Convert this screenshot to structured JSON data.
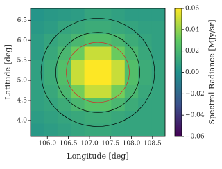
{
  "chart_data": {
    "type": "heatmap",
    "xlabel": "Longitude [deg]",
    "ylabel": "Latitude [deg]",
    "colorbar_label": "Spectral Radiance [MJy/sr]",
    "xlim": [
      105.6,
      108.8
    ],
    "ylim": [
      3.6,
      6.8
    ],
    "xticks": [
      {
        "value": 106,
        "label": "106.0"
      },
      106.5,
      {
        "value": 107,
        "label": "107.0"
      },
      107.5,
      {
        "value": 108,
        "label": "108.0"
      },
      108.5
    ],
    "yticks": [
      {
        "value": 4,
        "label": "4.0"
      },
      4.5,
      {
        "value": 5,
        "label": "5.0"
      },
      5.5,
      {
        "value": 6,
        "label": "6.0"
      },
      6.5
    ],
    "clim": [
      -0.06,
      0.06
    ],
    "cticks": [
      {
        "value": -0.06,
        "label": "−0.06"
      },
      {
        "value": -0.04,
        "label": "−0.04"
      },
      {
        "value": -0.02,
        "label": "−0.02"
      },
      {
        "value": 0,
        "label": "0.00"
      },
      0.02,
      0.04,
      0.06
    ],
    "z": [
      [
        0.002,
        0.004,
        0.005,
        0.006,
        0.01,
        0.01,
        0.008,
        0.006,
        0.006,
        0.006
      ],
      [
        0.004,
        0.006,
        0.01,
        0.012,
        0.014,
        0.014,
        0.012,
        0.01,
        0.008,
        0.008
      ],
      [
        0.006,
        0.01,
        0.014,
        0.02,
        0.024,
        0.024,
        0.02,
        0.014,
        0.01,
        0.008
      ],
      [
        0.006,
        0.012,
        0.02,
        0.032,
        0.05,
        0.05,
        0.032,
        0.02,
        0.012,
        0.008
      ],
      [
        0.008,
        0.014,
        0.024,
        0.05,
        0.06,
        0.06,
        0.05,
        0.024,
        0.014,
        0.01
      ],
      [
        0.008,
        0.014,
        0.024,
        0.05,
        0.06,
        0.06,
        0.05,
        0.024,
        0.014,
        0.01
      ],
      [
        0.008,
        0.012,
        0.02,
        0.034,
        0.05,
        0.05,
        0.034,
        0.02,
        0.012,
        0.01
      ],
      [
        0.008,
        0.01,
        0.014,
        0.02,
        0.026,
        0.026,
        0.02,
        0.014,
        0.01,
        0.01
      ],
      [
        0.006,
        0.008,
        0.01,
        0.012,
        0.014,
        0.014,
        0.012,
        0.01,
        0.01,
        0.01
      ],
      [
        0.004,
        0.006,
        0.008,
        0.01,
        0.012,
        0.012,
        0.01,
        0.01,
        0.01,
        0.01
      ]
    ],
    "circles": [
      {
        "center": [
          107.2,
          5.2
        ],
        "radius": 1.35,
        "color": "#000000"
      },
      {
        "center": [
          107.2,
          5.2
        ],
        "radius": 1.0,
        "color": "#000000"
      },
      {
        "center": [
          107.2,
          5.2
        ],
        "radius": 0.75,
        "color": "#d62728"
      }
    ]
  }
}
